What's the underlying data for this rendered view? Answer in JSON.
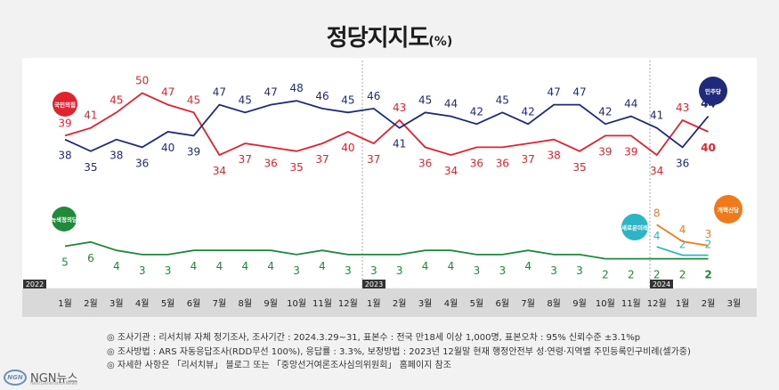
{
  "title": "정당지지도",
  "title_unit": "(%)",
  "year_labels": [
    "2022",
    "2023",
    "2024"
  ],
  "party_labels": {
    "ppp": "국민의힘",
    "dp": "민주당",
    "justice": "녹색정의당",
    "newfuture": "새로운미래",
    "reform": "개혁신당"
  },
  "notes": [
    "◎ 조사기관 : 리서치뷰 자체 정기조사, 조사기간 : 2024.3.29~31, 표본수 : 전국 만18세 이상 1,000명, 표본오차 : 95% 신뢰수준 ±3.1%p",
    "◎ 조사방법 : ARS 자동응답조사(RDD무선 100%), 응답률 : 3.3%, 보정방법 : 2023년 12월말 현재 행정안전부 성·연령·지역별 주민등록인구비례(셀가중)",
    "◎ 자세한 사항은 「리서치뷰」 블로그 또는 「중앙선거여론조사심의위원회」 홈페이지 참조"
  ],
  "brand": {
    "name": "NGN뉴스",
    "logo_text": "NGN",
    "sub": "NextGenerationNews"
  },
  "colors": {
    "ppp": "#e3222f",
    "dp": "#1f2a7a",
    "justice": "#1e8a3a",
    "newfuture": "#2bb5c5",
    "reform": "#f07a1a"
  },
  "chart_data": {
    "type": "line",
    "title": "정당지지도",
    "unit": "%",
    "categories": [
      "1월",
      "2월",
      "3월",
      "4월",
      "5월",
      "6월",
      "7월",
      "8월",
      "9월",
      "10월",
      "11월",
      "12월",
      "1월",
      "2월",
      "3월",
      "4월",
      "5월",
      "6월",
      "7월",
      "8월",
      "9월",
      "10월",
      "11월",
      "12월",
      "1월",
      "2월",
      "3월"
    ],
    "periods": [
      "2022",
      "2022",
      "2022",
      "2022",
      "2022",
      "2022",
      "2022",
      "2022",
      "2022",
      "2022",
      "2022",
      "2022",
      "2023",
      "2023",
      "2023",
      "2023",
      "2023",
      "2023",
      "2023",
      "2023",
      "2023",
      "2023",
      "2023",
      "2023",
      "2024",
      "2024",
      "2024"
    ],
    "series": [
      {
        "name": "국민의힘",
        "key": "ppp",
        "values": [
          39,
          41,
          45,
          50,
          47,
          45,
          34,
          37,
          36,
          35,
          37,
          40,
          37,
          43,
          36,
          34,
          36,
          36,
          37,
          38,
          35,
          39,
          39,
          34,
          43,
          40,
          null
        ],
        "display": [
          39,
          41,
          45,
          50,
          47,
          45,
          34,
          37,
          36,
          35,
          37,
          40,
          37,
          43,
          36,
          34,
          36,
          36,
          37,
          38,
          35,
          39,
          39,
          34,
          43,
          40
        ]
      },
      {
        "name": "민주당",
        "key": "dp",
        "values": [
          38,
          35,
          38,
          36,
          40,
          39,
          47,
          45,
          47,
          48,
          46,
          45,
          46,
          41,
          45,
          44,
          42,
          45,
          42,
          47,
          47,
          42,
          44,
          41,
          36,
          44,
          null
        ]
      },
      {
        "name": "녹색정의당",
        "key": "justice",
        "values": [
          5,
          6,
          4,
          3,
          3,
          4,
          4,
          4,
          4,
          3,
          4,
          3,
          3,
          3,
          4,
          4,
          3,
          3,
          4,
          3,
          3,
          2,
          2,
          2,
          2,
          2,
          null
        ]
      },
      {
        "name": "새로운미래",
        "key": "newfuture",
        "values": [
          null,
          null,
          null,
          null,
          null,
          null,
          null,
          null,
          null,
          null,
          null,
          null,
          null,
          null,
          null,
          null,
          null,
          null,
          null,
          null,
          null,
          null,
          null,
          4,
          2,
          2,
          null
        ]
      },
      {
        "name": "개혁신당",
        "key": "reform",
        "values": [
          null,
          null,
          null,
          null,
          null,
          null,
          null,
          null,
          null,
          null,
          null,
          null,
          null,
          null,
          null,
          null,
          null,
          null,
          null,
          null,
          null,
          null,
          null,
          8,
          4,
          3,
          null
        ]
      }
    ]
  }
}
